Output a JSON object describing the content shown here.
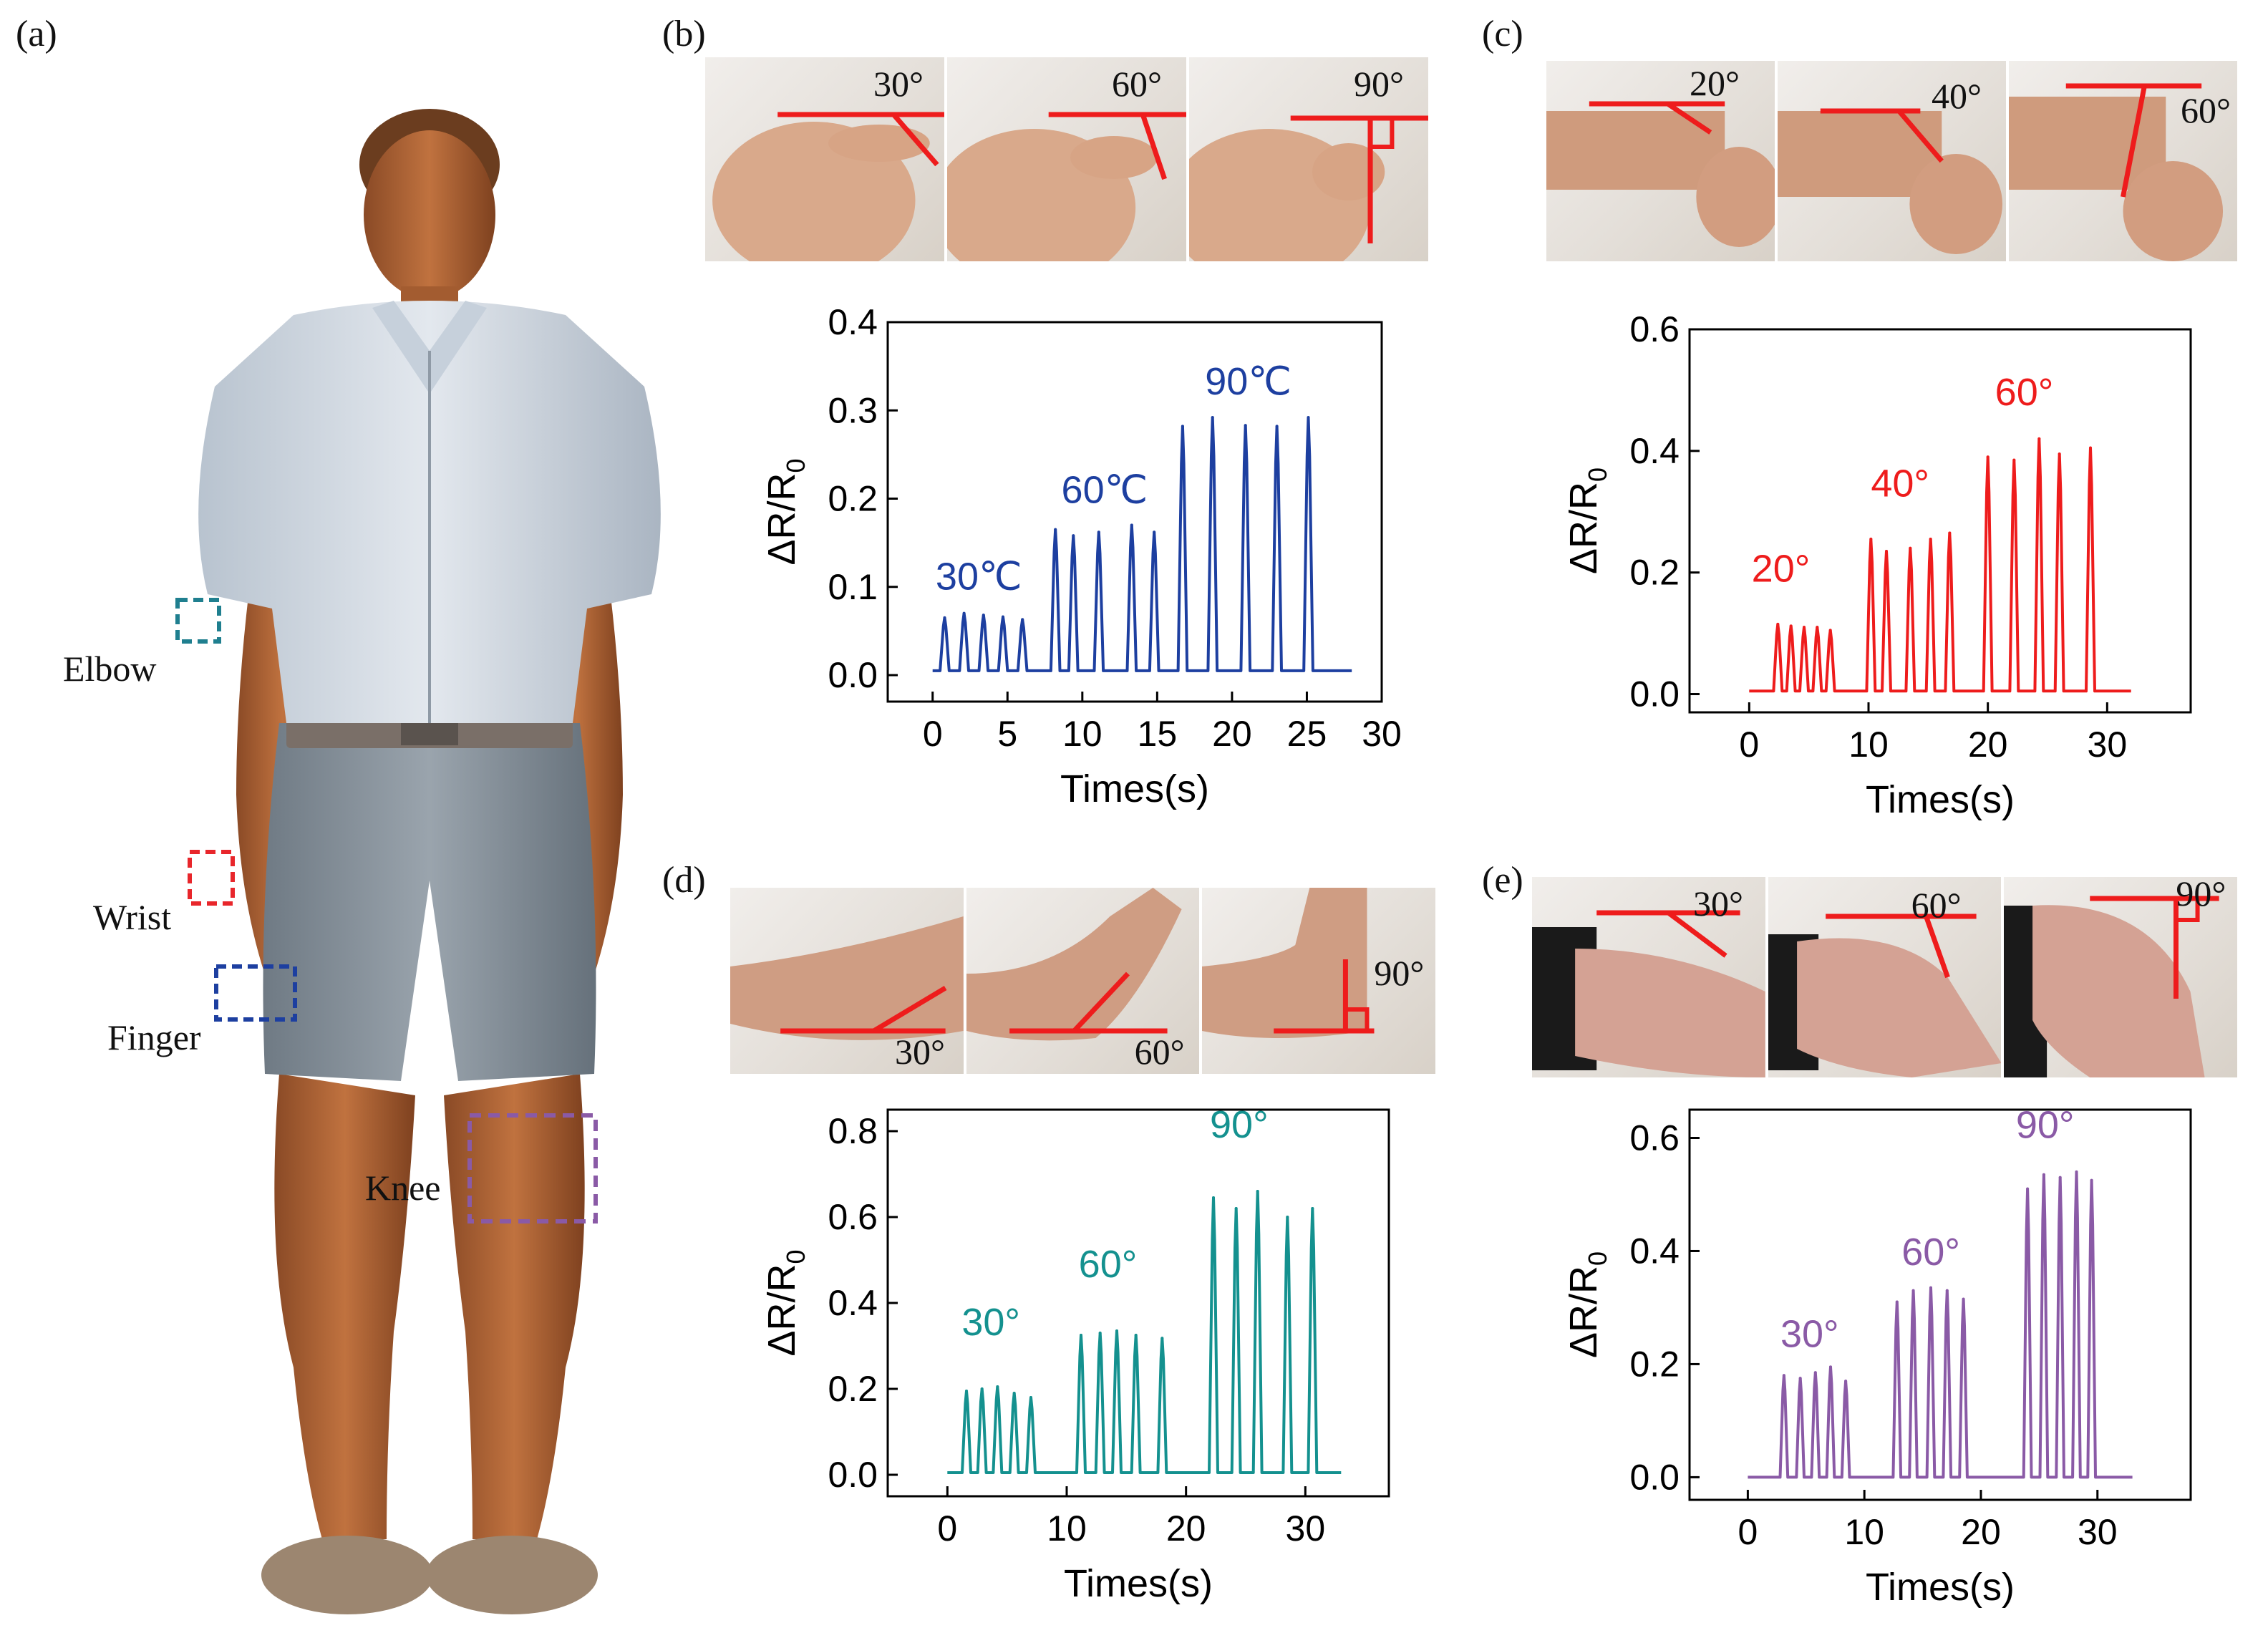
{
  "panels": {
    "a": "(a)",
    "b": "(b)",
    "c": "(c)",
    "d": "(d)",
    "e": "(e)"
  },
  "body_labels": {
    "elbow": "Elbow",
    "wrist": "Wrist",
    "finger": "Finger",
    "knee": "Knee"
  },
  "photo_labels": {
    "b": [
      "30°",
      "60°",
      "90°"
    ],
    "c": [
      "20°",
      "40°",
      "60°"
    ],
    "d": [
      "30°",
      "60°",
      "90°"
    ],
    "e": [
      "30°",
      "60°",
      "90°"
    ]
  },
  "colors": {
    "elbow": "#1f7f8f",
    "wrist": "#e8262b",
    "finger": "#1d3fa0",
    "knee": "#8a5aa6",
    "angle_line": "#ee1c1c"
  },
  "chart_data": [
    {
      "id": "b",
      "type": "line",
      "color": "#1d3fa0",
      "xlabel": "Times(s)",
      "ylabel": "ΔR/R0",
      "xlim": [
        -3,
        30
      ],
      "ylim": [
        -0.03,
        0.4
      ],
      "xticks": [
        0,
        5,
        10,
        15,
        20,
        25,
        30
      ],
      "xtick_labels": [
        "0",
        "5",
        "10",
        "15",
        "20",
        "25",
        "30"
      ],
      "yticks": [
        0.0,
        0.1,
        0.2,
        0.3,
        0.4
      ],
      "ytick_labels": [
        "0.0",
        "0.1",
        "0.2",
        "0.3",
        "0.4"
      ],
      "baseline": 0.005,
      "x_end": 28,
      "peak_width": 0.55,
      "peaks": [
        {
          "x": 0.8,
          "y": 0.065
        },
        {
          "x": 2.1,
          "y": 0.07
        },
        {
          "x": 3.4,
          "y": 0.068
        },
        {
          "x": 4.7,
          "y": 0.066
        },
        {
          "x": 6.0,
          "y": 0.063
        },
        {
          "x": 8.2,
          "y": 0.165
        },
        {
          "x": 9.4,
          "y": 0.158
        },
        {
          "x": 11.1,
          "y": 0.162
        },
        {
          "x": 13.3,
          "y": 0.17
        },
        {
          "x": 14.8,
          "y": 0.162
        },
        {
          "x": 16.7,
          "y": 0.282
        },
        {
          "x": 18.7,
          "y": 0.292
        },
        {
          "x": 20.9,
          "y": 0.283
        },
        {
          "x": 23.0,
          "y": 0.282
        },
        {
          "x": 25.1,
          "y": 0.292
        }
      ],
      "annotations": [
        {
          "text": "30℃",
          "x": 0.2,
          "y": 0.097
        },
        {
          "text": "60℃",
          "x": 8.6,
          "y": 0.195
        },
        {
          "text": "90℃",
          "x": 18.2,
          "y": 0.318
        }
      ]
    },
    {
      "id": "c",
      "type": "line",
      "color": "#ee1c1c",
      "xlabel": "Times(s)",
      "ylabel": "ΔR/R0",
      "xlim": [
        -5,
        37
      ],
      "ylim": [
        -0.03,
        0.6
      ],
      "xticks": [
        0,
        10,
        20,
        30
      ],
      "xtick_labels": [
        "0",
        "10",
        "20",
        "30"
      ],
      "yticks": [
        0.0,
        0.2,
        0.4,
        0.6
      ],
      "ytick_labels": [
        "0.0",
        "0.2",
        "0.4",
        "0.6"
      ],
      "baseline": 0.005,
      "x_end": 32,
      "peak_width": 0.65,
      "peaks": [
        {
          "x": 2.4,
          "y": 0.115
        },
        {
          "x": 3.5,
          "y": 0.112
        },
        {
          "x": 4.6,
          "y": 0.11
        },
        {
          "x": 5.7,
          "y": 0.11
        },
        {
          "x": 6.8,
          "y": 0.105
        },
        {
          "x": 10.2,
          "y": 0.255
        },
        {
          "x": 11.5,
          "y": 0.235
        },
        {
          "x": 13.5,
          "y": 0.24
        },
        {
          "x": 15.2,
          "y": 0.255
        },
        {
          "x": 16.8,
          "y": 0.265
        },
        {
          "x": 20.0,
          "y": 0.39
        },
        {
          "x": 22.2,
          "y": 0.385
        },
        {
          "x": 24.3,
          "y": 0.42
        },
        {
          "x": 26.0,
          "y": 0.395
        },
        {
          "x": 28.6,
          "y": 0.405
        }
      ],
      "annotations": [
        {
          "text": "20°",
          "x": 0.2,
          "y": 0.185
        },
        {
          "text": "40°",
          "x": 10.2,
          "y": 0.325
        },
        {
          "text": "60°",
          "x": 20.6,
          "y": 0.475
        }
      ]
    },
    {
      "id": "d",
      "type": "line",
      "color": "#14918f",
      "xlabel": "Times(s)",
      "ylabel": "ΔR/R0",
      "xlim": [
        -5,
        37
      ],
      "ylim": [
        -0.05,
        0.85
      ],
      "xticks": [
        0,
        10,
        20,
        30
      ],
      "xtick_labels": [
        "0",
        "10",
        "20",
        "30"
      ],
      "yticks": [
        0.0,
        0.2,
        0.4,
        0.6,
        0.8
      ],
      "ytick_labels": [
        "0.0",
        "0.2",
        "0.4",
        "0.6",
        "0.8"
      ],
      "baseline": 0.005,
      "x_end": 33,
      "peak_width": 0.65,
      "peaks": [
        {
          "x": 1.6,
          "y": 0.195
        },
        {
          "x": 2.9,
          "y": 0.2
        },
        {
          "x": 4.2,
          "y": 0.205
        },
        {
          "x": 5.6,
          "y": 0.19
        },
        {
          "x": 7.0,
          "y": 0.18
        },
        {
          "x": 11.2,
          "y": 0.325
        },
        {
          "x": 12.8,
          "y": 0.33
        },
        {
          "x": 14.2,
          "y": 0.335
        },
        {
          "x": 15.8,
          "y": 0.325
        },
        {
          "x": 18.0,
          "y": 0.318
        },
        {
          "x": 22.3,
          "y": 0.645
        },
        {
          "x": 24.2,
          "y": 0.62
        },
        {
          "x": 26.0,
          "y": 0.66
        },
        {
          "x": 28.5,
          "y": 0.6
        },
        {
          "x": 30.6,
          "y": 0.62
        }
      ],
      "annotations": [
        {
          "text": "30°",
          "x": 1.2,
          "y": 0.325
        },
        {
          "text": "60°",
          "x": 11.0,
          "y": 0.46
        },
        {
          "text": "90°",
          "x": 22.0,
          "y": 0.785
        }
      ]
    },
    {
      "id": "e",
      "type": "line",
      "color": "#8a5aa6",
      "xlabel": "Times(s)",
      "ylabel": "ΔR/R0",
      "xlim": [
        -5,
        38
      ],
      "ylim": [
        -0.04,
        0.65
      ],
      "xticks": [
        0,
        10,
        20,
        30
      ],
      "xtick_labels": [
        "0",
        "10",
        "20",
        "30"
      ],
      "yticks": [
        0.0,
        0.2,
        0.4,
        0.6
      ],
      "ytick_labels": [
        "0.0",
        "0.2",
        "0.4",
        "0.6"
      ],
      "baseline": 0.0,
      "x_end": 33,
      "peak_width": 0.6,
      "peaks": [
        {
          "x": 3.1,
          "y": 0.18
        },
        {
          "x": 4.5,
          "y": 0.175
        },
        {
          "x": 5.8,
          "y": 0.185
        },
        {
          "x": 7.1,
          "y": 0.195
        },
        {
          "x": 8.4,
          "y": 0.17
        },
        {
          "x": 12.8,
          "y": 0.31
        },
        {
          "x": 14.2,
          "y": 0.33
        },
        {
          "x": 15.7,
          "y": 0.335
        },
        {
          "x": 17.1,
          "y": 0.33
        },
        {
          "x": 18.5,
          "y": 0.315
        },
        {
          "x": 24.0,
          "y": 0.51
        },
        {
          "x": 25.4,
          "y": 0.535
        },
        {
          "x": 26.8,
          "y": 0.53
        },
        {
          "x": 28.2,
          "y": 0.54
        },
        {
          "x": 29.5,
          "y": 0.525
        }
      ],
      "annotations": [
        {
          "text": "30°",
          "x": 2.8,
          "y": 0.23
        },
        {
          "text": "60°",
          "x": 13.2,
          "y": 0.375
        },
        {
          "text": "90°",
          "x": 23.0,
          "y": 0.6
        }
      ]
    }
  ]
}
